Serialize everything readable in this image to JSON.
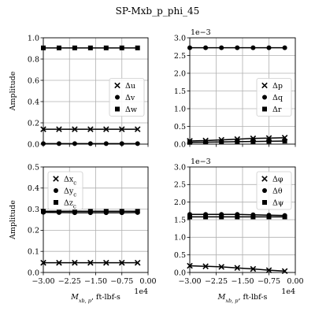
{
  "title": "SP-Mxb_p_phi_45",
  "chart_data": [
    {
      "id": "tl",
      "type": "line",
      "ylabel": "Amplitude",
      "xlabel": "",
      "xlim": [
        -30000,
        0
      ],
      "ylim": [
        0,
        1.0
      ],
      "xticks": [
        -30000,
        -22500,
        -15000,
        -7500,
        0
      ],
      "xtick_labels": [
        "",
        "",
        "",
        "",
        ""
      ],
      "yticks": [
        0,
        0.2,
        0.4,
        0.6,
        0.8,
        1.0
      ],
      "ytick_labels": [
        "0.0",
        "0.2",
        "0.4",
        "0.6",
        "0.8",
        "1.0"
      ],
      "multiplier": "",
      "x": [
        -30000,
        -25500,
        -21000,
        -16500,
        -12000,
        -7500,
        -3000
      ],
      "legend_position": "center-right",
      "series": [
        {
          "name": "Δu",
          "marker": "x",
          "values": [
            0.14,
            0.14,
            0.14,
            0.14,
            0.14,
            0.14,
            0.14
          ]
        },
        {
          "name": "Δv",
          "marker": "o",
          "values": [
            0.005,
            0.005,
            0.005,
            0.005,
            0.005,
            0.005,
            0.005
          ]
        },
        {
          "name": "Δw",
          "marker": "s",
          "values": [
            0.905,
            0.905,
            0.905,
            0.905,
            0.905,
            0.905,
            0.905
          ]
        }
      ]
    },
    {
      "id": "tr",
      "type": "line",
      "ylabel": "",
      "xlabel": "",
      "xlim": [
        -30000,
        0
      ],
      "ylim": [
        0,
        3.0
      ],
      "xticks": [
        -30000,
        -22500,
        -15000,
        -7500,
        0
      ],
      "xtick_labels": [
        "",
        "",
        "",
        "",
        ""
      ],
      "yticks": [
        0,
        0.5,
        1.0,
        1.5,
        2.0,
        2.5,
        3.0
      ],
      "ytick_labels": [
        "0.0",
        "0.5",
        "1.0",
        "1.5",
        "2.0",
        "2.5",
        "3.0"
      ],
      "multiplier": "1e−3",
      "x": [
        -30000,
        -25500,
        -21000,
        -16500,
        -12000,
        -7500,
        -3000
      ],
      "legend_position": "center-right",
      "series": [
        {
          "name": "Δp",
          "marker": "x",
          "values": [
            0.09,
            0.1,
            0.12,
            0.14,
            0.16,
            0.17,
            0.18
          ]
        },
        {
          "name": "Δq",
          "marker": "o",
          "values": [
            2.72,
            2.72,
            2.72,
            2.72,
            2.72,
            2.72,
            2.72
          ]
        },
        {
          "name": "Δr",
          "marker": "s",
          "values": [
            0.05,
            0.055,
            0.06,
            0.07,
            0.075,
            0.08,
            0.085
          ]
        }
      ]
    },
    {
      "id": "bl",
      "type": "line",
      "ylabel": "Amplitude",
      "xlabel": "M_{x_b,p}, ft-lbf-s",
      "xlabel_main": "M",
      "xlabel_sub": "xb, p",
      "xlabel_rest": ", ft-lbf-s",
      "xlim": [
        -30000,
        0
      ],
      "ylim": [
        0,
        0.5
      ],
      "xticks": [
        -30000,
        -22500,
        -15000,
        -7500,
        0
      ],
      "xtick_labels": [
        "−3.00",
        "−2.25",
        "−1.50",
        "−0.75",
        "0.00"
      ],
      "yticks": [
        0,
        0.1,
        0.2,
        0.3,
        0.4,
        0.5
      ],
      "ytick_labels": [
        "0.0",
        "0.1",
        "0.2",
        "0.3",
        "0.4",
        "0.5"
      ],
      "multiplier": "1e4",
      "x": [
        -30000,
        -25500,
        -21000,
        -16500,
        -12000,
        -7500,
        -3000
      ],
      "legend_position": "top-left",
      "series": [
        {
          "name": "Δx_c",
          "marker": "x",
          "values": [
            0.046,
            0.046,
            0.046,
            0.046,
            0.046,
            0.046,
            0.046
          ]
        },
        {
          "name": "Δy_c",
          "marker": "o",
          "values": [
            0.285,
            0.284,
            0.283,
            0.283,
            0.283,
            0.283,
            0.284
          ]
        },
        {
          "name": "Δz_c",
          "marker": "s",
          "values": [
            0.29,
            0.29,
            0.29,
            0.29,
            0.29,
            0.29,
            0.29
          ]
        }
      ]
    },
    {
      "id": "br",
      "type": "line",
      "ylabel": "",
      "xlabel": "M_{x_b,p}, ft-lbf-s",
      "xlabel_main": "M",
      "xlabel_sub": "xb, p",
      "xlabel_rest": ", ft-lbf-s",
      "xlim": [
        -30000,
        0
      ],
      "ylim": [
        0,
        3.0
      ],
      "xticks": [
        -30000,
        -22500,
        -15000,
        -7500,
        0
      ],
      "xtick_labels": [
        "−3.00",
        "−2.25",
        "−1.50",
        "−0.75",
        "0.00"
      ],
      "yticks": [
        0,
        0.5,
        1.0,
        1.5,
        2.0,
        2.5,
        3.0
      ],
      "ytick_labels": [
        "0.0",
        "0.5",
        "1.0",
        "1.5",
        "2.0",
        "2.5",
        "3.0"
      ],
      "multiplier": "1e−3",
      "multiplier_x": "1e4",
      "x": [
        -30000,
        -25500,
        -21000,
        -16500,
        -12000,
        -7500,
        -3000
      ],
      "legend_position": "top-right",
      "series": [
        {
          "name": "Δφ",
          "marker": "x",
          "values": [
            0.19,
            0.175,
            0.16,
            0.13,
            0.1,
            0.065,
            0.04
          ]
        },
        {
          "name": "Δθ",
          "marker": "o",
          "values": [
            1.65,
            1.65,
            1.65,
            1.65,
            1.64,
            1.63,
            1.62
          ]
        },
        {
          "name": "Δψ",
          "marker": "s",
          "values": [
            1.58,
            1.58,
            1.58,
            1.58,
            1.58,
            1.58,
            1.58
          ]
        }
      ]
    }
  ]
}
